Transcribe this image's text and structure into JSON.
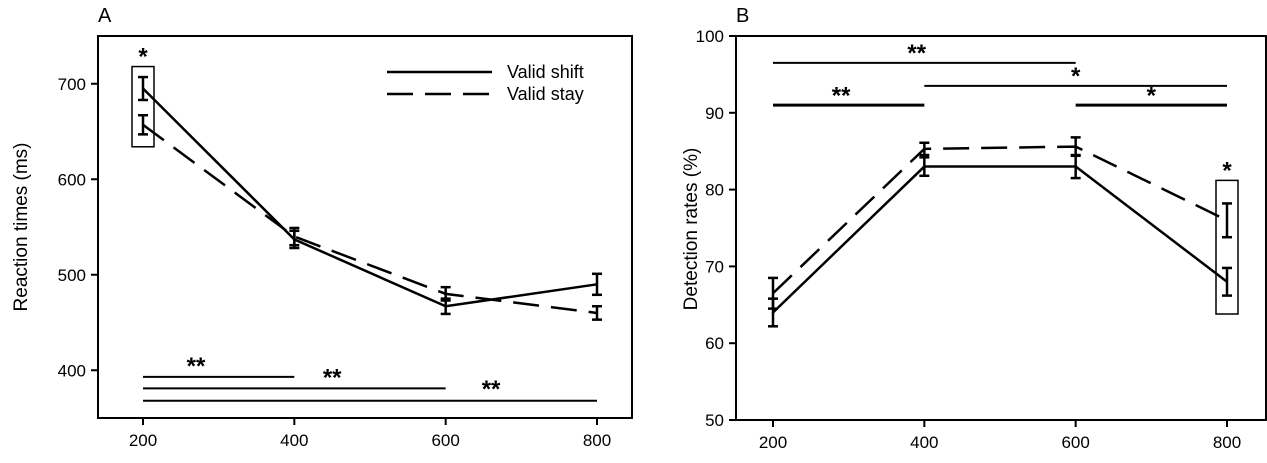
{
  "chart_data": [
    {
      "panel": "A",
      "type": "line",
      "ylabel": "Reaction times (ms)",
      "xlabel": "",
      "x": [
        200,
        400,
        600,
        800
      ],
      "xticks": [
        "200",
        "400",
        "600",
        "800"
      ],
      "ylim": [
        350,
        750
      ],
      "xlim": [
        180,
        820
      ],
      "yticks": [
        400,
        500,
        600,
        700
      ],
      "legend_position": "top-right",
      "series": [
        {
          "name": "Valid shift",
          "style": "solid",
          "values": [
            695,
            537,
            467,
            490
          ],
          "err": [
            12,
            9,
            8,
            11
          ]
        },
        {
          "name": "Valid stay",
          "style": "dashed",
          "values": [
            657,
            540,
            480,
            460
          ],
          "err": [
            10,
            9,
            7,
            7
          ]
        }
      ],
      "significance_lines": [
        {
          "x1": 200,
          "x2": 400,
          "y": 393,
          "label": "**",
          "label_x": 270,
          "label_y": 398
        },
        {
          "x1": 200,
          "x2": 600,
          "y": 381,
          "label": "**",
          "label_x": 450,
          "label_y": 386
        },
        {
          "x1": 200,
          "x2": 800,
          "y": 368,
          "label": "**",
          "label_x": 660,
          "label_y": 374
        }
      ],
      "highlight": {
        "x": 200,
        "ylo": 634,
        "yhi": 718,
        "label": "*"
      }
    },
    {
      "panel": "B",
      "type": "line",
      "ylabel": "Detection rates (%)",
      "xlabel": "",
      "x": [
        200,
        400,
        600,
        800
      ],
      "xticks": [
        "200",
        "400",
        "600",
        "800"
      ],
      "ylim": [
        50,
        100
      ],
      "xlim": [
        180,
        820
      ],
      "yticks": [
        50,
        60,
        70,
        80,
        90,
        100
      ],
      "series": [
        {
          "name": "Valid shift",
          "style": "solid",
          "values": [
            64,
            83,
            83,
            68
          ],
          "err": [
            1.8,
            1.2,
            1.5,
            1.8
          ]
        },
        {
          "name": "Valid stay",
          "style": "dashed",
          "values": [
            66.5,
            85.3,
            85.6,
            76
          ],
          "err": [
            2.0,
            0.8,
            1.2,
            2.2
          ]
        }
      ],
      "significance_lines": [
        {
          "x1": 200,
          "x2": 600,
          "y": 96.5,
          "label": "**",
          "label_x": 390,
          "label_y": 97,
          "thick": false
        },
        {
          "x1": 400,
          "x2": 800,
          "y": 93.5,
          "label": "*",
          "label_x": 600,
          "label_y": 94,
          "thick": false
        },
        {
          "x1": 200,
          "x2": 400,
          "y": 91,
          "label": "**",
          "label_x": 290,
          "label_y": 91.5,
          "thick": true
        },
        {
          "x1": 600,
          "x2": 800,
          "y": 91,
          "label": "*",
          "label_x": 700,
          "label_y": 91.5,
          "thick": true
        }
      ],
      "highlight": {
        "x": 800,
        "ylo": 63.8,
        "yhi": 81.2,
        "label": "*"
      }
    }
  ]
}
